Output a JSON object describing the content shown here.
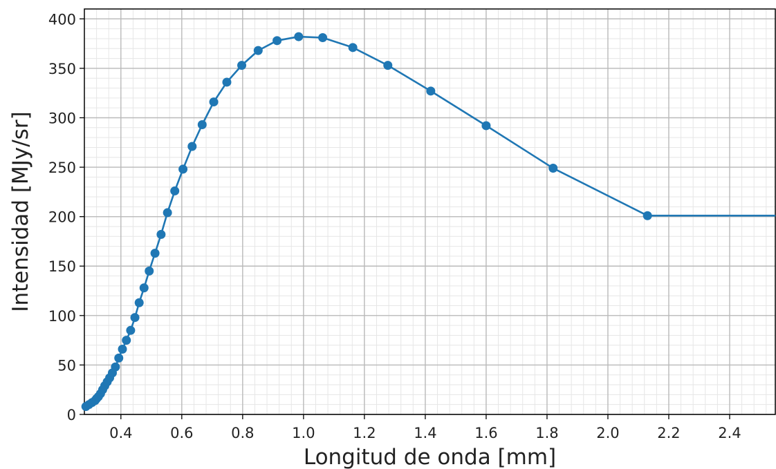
{
  "chart_data": {
    "type": "line",
    "title": "",
    "xlabel": "Longitud de onda [mm]",
    "ylabel": "Intensidad [MJy/sr]",
    "xlim": [
      0.28,
      2.55
    ],
    "ylim": [
      0,
      410
    ],
    "xticks": [
      0.4,
      0.6,
      0.8,
      1.0,
      1.2,
      1.4,
      1.6,
      1.8,
      2.0,
      2.2,
      2.4
    ],
    "xtick_labels": [
      "0.4",
      "0.6",
      "0.8",
      "1.0",
      "1.2",
      "1.4",
      "1.6",
      "1.8",
      "2.0",
      "2.2",
      "2.4"
    ],
    "yticks": [
      0,
      50,
      100,
      150,
      200,
      250,
      300,
      350,
      400
    ],
    "ytick_labels": [
      "0",
      "50",
      "100",
      "150",
      "200",
      "250",
      "300",
      "350",
      "400"
    ],
    "grid": true,
    "minor_grid": true,
    "line_color": "#1f77b4",
    "series": [
      {
        "x": [
          0.285,
          0.295,
          0.305,
          0.315,
          0.32,
          0.326,
          0.333,
          0.34,
          0.347,
          0.355,
          0.363,
          0.372,
          0.382,
          0.393,
          0.405,
          0.418,
          0.432,
          0.446,
          0.46,
          0.476,
          0.493,
          0.512,
          0.532,
          0.553,
          0.577,
          0.604,
          0.634,
          0.667,
          0.705,
          0.748,
          0.797,
          0.851,
          0.913,
          0.984,
          1.063,
          1.162,
          1.277,
          1.418,
          1.6,
          1.82,
          2.13
        ],
        "y": [
          8,
          10,
          12,
          14,
          16,
          18,
          21,
          25,
          29,
          33,
          37,
          42,
          48,
          57,
          66,
          75,
          85,
          98,
          113,
          128,
          145,
          163,
          182,
          204,
          226,
          248,
          271,
          293,
          316,
          336,
          353,
          368,
          378,
          382,
          381,
          371,
          353,
          327,
          292,
          249,
          201
        ]
      }
    ],
    "line_extension": {
      "x": [
        2.55
      ],
      "y": [
        201
      ]
    }
  }
}
